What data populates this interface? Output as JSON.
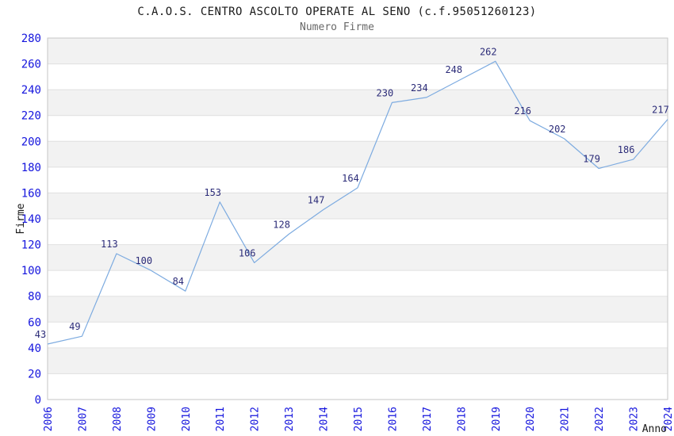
{
  "page": {
    "title": "C.A.O.S. CENTRO ASCOLTO OPERATE AL SENO (c.f.95051260123)",
    "subtitle": "Numero Firme"
  },
  "chart_data": {
    "type": "line",
    "title": "C.A.O.S. CENTRO ASCOLTO OPERATE AL SENO (c.f.95051260123)",
    "subtitle": "Numero Firme",
    "xlabel": "Anno",
    "ylabel": "Firme",
    "categories": [
      "2006",
      "2007",
      "2008",
      "2009",
      "2010",
      "2011",
      "2012",
      "2013",
      "2014",
      "2015",
      "2016",
      "2017",
      "2018",
      "2019",
      "2020",
      "2021",
      "2022",
      "2023",
      "2024"
    ],
    "series": [
      {
        "name": "Numero Firme",
        "values": [
          43,
          49,
          113,
          100,
          84,
          153,
          106,
          128,
          147,
          164,
          230,
          234,
          248,
          262,
          216,
          202,
          179,
          186,
          217
        ]
      }
    ],
    "ylim": [
      0,
      280
    ],
    "ytick_step": 20,
    "grid": true,
    "legend_position": "none",
    "data_labels_shown": true,
    "colors": {
      "line": "#7dabe0",
      "band_fill": "#f2f2f2",
      "gridline": "#e0e0e0",
      "plot_border": "#c6c6c6",
      "axis_tick_label": "#1414dd",
      "data_label": "#2b2b78",
      "axis_title": "#1a1a1a",
      "title": "#1a1a1a",
      "subtitle": "#686868"
    }
  }
}
